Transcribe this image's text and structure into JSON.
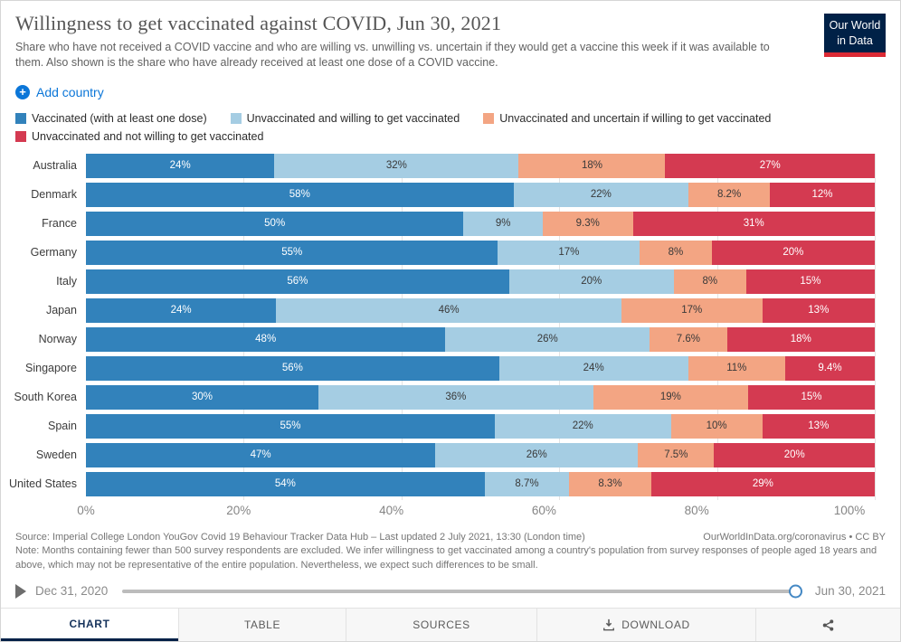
{
  "header": {
    "title": "Willingness to get vaccinated against COVID, Jun 30, 2021",
    "subtitle": "Share who have not received a COVID vaccine and who are willing vs. unwilling vs. uncertain if they would get a vaccine this week if it was available to them. Also shown is the share who have already received at least one dose of a COVID vaccine.",
    "logo_line1": "Our World",
    "logo_line2": "in Data",
    "add_country_label": "Add country",
    "accent_blue": "#0b76d8"
  },
  "chart_data": {
    "type": "bar",
    "stacked": true,
    "orientation": "horizontal",
    "title": "Willingness to get vaccinated against COVID, Jun 30, 2021",
    "xlabel": "",
    "ylabel": "",
    "xlim": [
      0,
      100
    ],
    "x_ticks": [
      0,
      20,
      40,
      60,
      80,
      100
    ],
    "x_tick_labels": [
      "0%",
      "20%",
      "40%",
      "60%",
      "80%",
      "100%"
    ],
    "grid": true,
    "legend_position": "top",
    "value_suffix": "%",
    "categories": [
      "Australia",
      "Denmark",
      "France",
      "Germany",
      "Italy",
      "Japan",
      "Norway",
      "Singapore",
      "South Korea",
      "Spain",
      "Sweden",
      "United States"
    ],
    "series": [
      {
        "name": "Vaccinated (with at least one dose)",
        "color": "#3282bb",
        "label_color": "#ffffff",
        "values": [
          24,
          58,
          50,
          55,
          56,
          24,
          48,
          56,
          30,
          55,
          47,
          54
        ]
      },
      {
        "name": "Unvaccinated and willing to get vaccinated",
        "color": "#a5cde3",
        "label_color": "#393939",
        "values": [
          32,
          22,
          9,
          17,
          20,
          46,
          26,
          24,
          36,
          22,
          26,
          8.7
        ]
      },
      {
        "name": "Unvaccinated and uncertain if willing to get vaccinated",
        "color": "#f3a583",
        "label_color": "#393939",
        "values": [
          18,
          8.2,
          9.3,
          8,
          8,
          17,
          7.6,
          11,
          19,
          10,
          7.5,
          8.3
        ]
      },
      {
        "name": "Unvaccinated and not willing to get vaccinated",
        "color": "#d43a51",
        "label_color": "#ffffff",
        "values": [
          27,
          12,
          31,
          20,
          15,
          13,
          18,
          9.4,
          15,
          13,
          20,
          29
        ]
      }
    ]
  },
  "footer": {
    "source": "Source: Imperial College London YouGov Covid 19 Behaviour Tracker Data Hub – Last updated 2 July 2021, 13:30 (London time)",
    "license": "OurWorldInData.org/coronavirus • CC BY",
    "note": "Note: Months containing fewer than 500 survey respondents are excluded. We infer willingness to get vaccinated among a country's population from survey responses of people aged 18 years and above, which may not be representative of the entire population. Nevertheless, we expect such differences to be small."
  },
  "timeline": {
    "start_date": "Dec 31, 2020",
    "end_date": "Jun 30, 2021"
  },
  "tabs": {
    "items": [
      {
        "label": "CHART",
        "active": true
      },
      {
        "label": "TABLE",
        "active": false
      },
      {
        "label": "SOURCES",
        "active": false
      },
      {
        "label": "DOWNLOAD",
        "active": false,
        "icon": "download-icon"
      },
      {
        "label": "",
        "active": false,
        "icon": "share-icon"
      }
    ]
  }
}
